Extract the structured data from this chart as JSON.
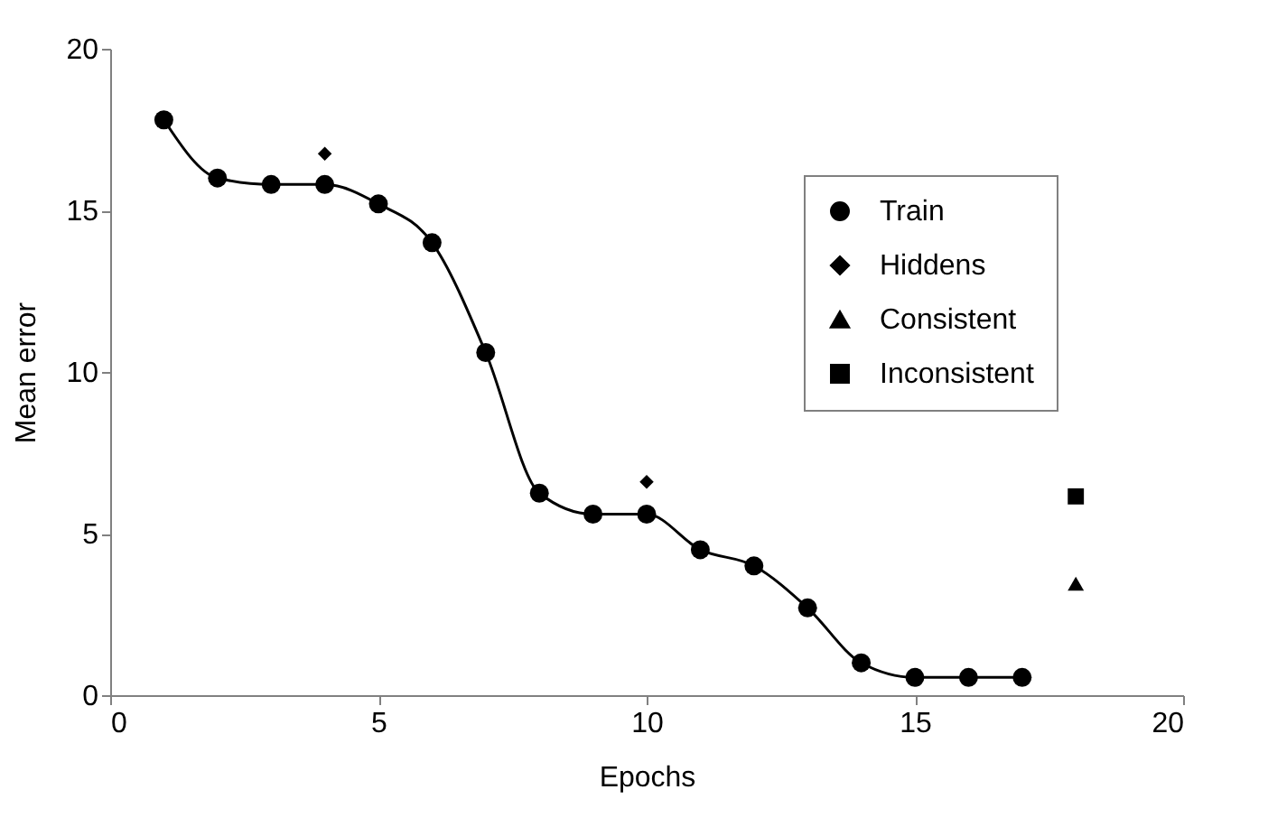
{
  "chart_data": {
    "type": "line",
    "xlabel": "Epochs",
    "ylabel": "Mean error",
    "xlim": [
      0,
      20
    ],
    "ylim": [
      0,
      20
    ],
    "xticks": [
      0,
      5,
      10,
      15,
      20
    ],
    "yticks": [
      0,
      5,
      10,
      15,
      20
    ],
    "grid": false,
    "legend": "top right",
    "series": [
      {
        "name": "Train",
        "marker": "circle",
        "color": "#000000",
        "x": [
          1,
          2,
          3,
          4,
          5,
          6,
          7,
          8,
          9,
          10,
          11,
          12,
          13,
          14,
          15,
          16,
          17
        ],
        "values": [
          17.8,
          16,
          15.8,
          15.8,
          15.2,
          14,
          10.6,
          6.25,
          5.6,
          5.6,
          4.5,
          4,
          2.7,
          1,
          0.55,
          0.55,
          0.55
        ]
      },
      {
        "name": "Hiddens",
        "type": "scatter",
        "marker": "diamond",
        "color": "#000000",
        "x": [
          4,
          10
        ],
        "values": [
          16.75,
          6.6
        ]
      },
      {
        "name": "Consistent",
        "type": "scatter",
        "marker": "triangle",
        "color": "#000000",
        "x": [
          18
        ],
        "values": [
          3.45
        ]
      },
      {
        "name": "Inconsistent",
        "type": "scatter",
        "marker": "square",
        "color": "#000000",
        "x": [
          18
        ],
        "values": [
          6.15
        ]
      }
    ]
  }
}
